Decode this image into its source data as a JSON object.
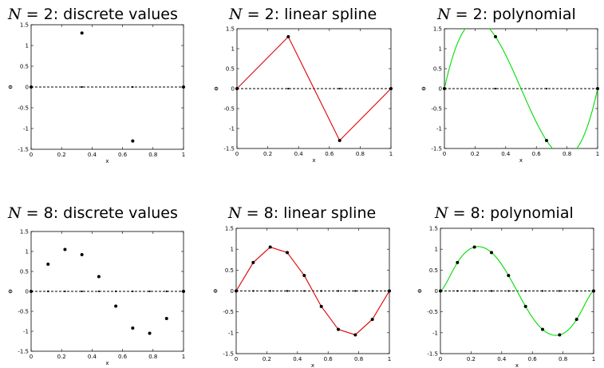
{
  "chart_data": [
    {
      "type": "scatter",
      "title_var": "N",
      "title_eq": " = 2:  discrete values",
      "xlabel": "x",
      "ylabel": "Φ",
      "xlim": [
        0,
        1
      ],
      "ylim": [
        -1.5,
        1.5
      ],
      "xticks": [
        "0",
        "0.2",
        "0.4",
        "0.6",
        "0.8",
        "1"
      ],
      "yticks": [
        "1.5",
        "1",
        "0.5",
        "0",
        "-0.5",
        "-1",
        "-1.5"
      ],
      "reference_line": 0,
      "line_color": "",
      "series": [
        {
          "x": [
            0,
            0.3333,
            0.6667,
            1
          ],
          "y": [
            0,
            1.3,
            -1.3,
            0
          ]
        }
      ]
    },
    {
      "type": "line",
      "title_var": "N",
      "title_eq": " = 2:  linear spline",
      "xlabel": "x",
      "ylabel": "Φ",
      "xlim": [
        0,
        1
      ],
      "ylim": [
        -1.5,
        1.5
      ],
      "xticks": [
        "0",
        "0.2",
        "0.4",
        "0.6",
        "0.8",
        "1"
      ],
      "yticks": [
        "1.5",
        "1",
        "0.5",
        "0",
        "-0.5",
        "-1",
        "-1.5"
      ],
      "reference_line": 0,
      "line_color": "#e00000",
      "series": [
        {
          "x": [
            0,
            0.3333,
            0.6667,
            1
          ],
          "y": [
            0,
            1.3,
            -1.3,
            0
          ]
        }
      ]
    },
    {
      "type": "line",
      "title_var": "N",
      "title_eq": " = 2:  polynomial",
      "xlabel": "x",
      "ylabel": "Φ",
      "xlim": [
        0,
        1
      ],
      "ylim": [
        -1.5,
        1.5
      ],
      "xticks": [
        "0",
        "0.2",
        "0.4",
        "0.6",
        "0.8",
        "1"
      ],
      "yticks": [
        "1.5",
        "1",
        "0.5",
        "0",
        "-0.5",
        "-1",
        "-1.5"
      ],
      "reference_line": 0,
      "line_color": "#00dd00",
      "curve": "polynomial",
      "series": [
        {
          "x": [
            0,
            0.3333,
            0.6667,
            1
          ],
          "y": [
            0,
            1.3,
            -1.3,
            0
          ]
        }
      ]
    },
    {
      "type": "scatter",
      "title_var": "N",
      "title_eq": " = 8:  discrete values",
      "xlabel": "x",
      "ylabel": "Φ",
      "xlim": [
        0,
        1
      ],
      "ylim": [
        -1.5,
        1.5
      ],
      "xticks": [
        "0",
        "0.2",
        "0.4",
        "0.6",
        "0.8",
        "1"
      ],
      "yticks": [
        "1.5",
        "1",
        "0.5",
        "0",
        "-0.5",
        "-1",
        "-1.5"
      ],
      "reference_line": 0,
      "line_color": "",
      "series": [
        {
          "x": [
            0,
            0.1111,
            0.2222,
            0.3333,
            0.4444,
            0.5556,
            0.6667,
            0.7778,
            0.8889,
            1
          ],
          "y": [
            0,
            0.68,
            1.05,
            0.92,
            0.37,
            -0.37,
            -0.92,
            -1.05,
            -0.68,
            0
          ]
        }
      ]
    },
    {
      "type": "line",
      "title_var": "N",
      "title_eq": " = 8:  linear spline",
      "xlabel": "x",
      "ylabel": "Φ",
      "xlim": [
        0,
        1
      ],
      "ylim": [
        -1.5,
        1.5
      ],
      "xticks": [
        "0",
        "0.2",
        "0.4",
        "0.6",
        "0.8",
        "1"
      ],
      "yticks": [
        "1.5",
        "1",
        "0.5",
        "0",
        "-0.5",
        "-1",
        "-1.5"
      ],
      "reference_line": 0,
      "line_color": "#e00000",
      "series": [
        {
          "x": [
            0,
            0.1111,
            0.2222,
            0.3333,
            0.4444,
            0.5556,
            0.6667,
            0.7778,
            0.8889,
            1
          ],
          "y": [
            0,
            0.68,
            1.05,
            0.92,
            0.37,
            -0.37,
            -0.92,
            -1.05,
            -0.68,
            0
          ]
        }
      ]
    },
    {
      "type": "line",
      "title_var": "N",
      "title_eq": " = 8:  polynomial",
      "xlabel": "x",
      "ylabel": "Φ",
      "xlim": [
        0,
        1
      ],
      "ylim": [
        -1.5,
        1.5
      ],
      "xticks": [
        "0",
        "0.2",
        "0.4",
        "0.6",
        "0.8",
        "1"
      ],
      "yticks": [
        "1.5",
        "1",
        "0.5",
        "0",
        "-0.5",
        "-1",
        "-1.5"
      ],
      "reference_line": 0,
      "line_color": "#00dd00",
      "curve": "polynomial",
      "series": [
        {
          "x": [
            0,
            0.1111,
            0.2222,
            0.3333,
            0.4444,
            0.5556,
            0.6667,
            0.7778,
            0.8889,
            1
          ],
          "y": [
            0,
            0.68,
            1.05,
            0.92,
            0.37,
            -0.37,
            -0.92,
            -1.05,
            -0.68,
            0
          ]
        }
      ]
    }
  ]
}
